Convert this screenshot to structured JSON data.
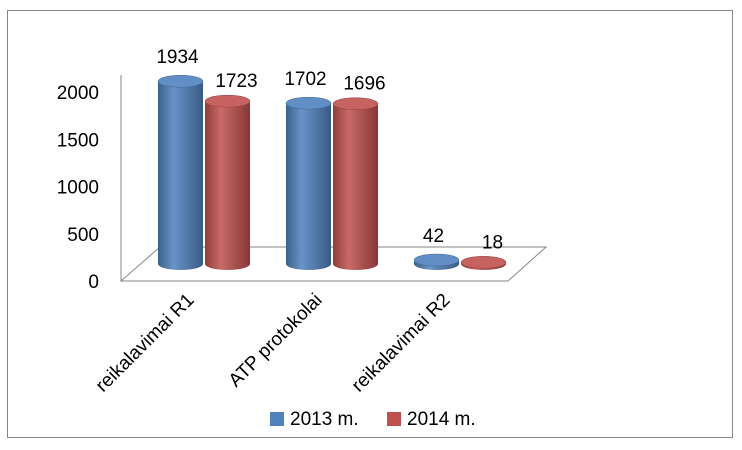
{
  "chart_data": {
    "type": "bar",
    "style": "3d-cylinder",
    "categories": [
      "reikalavimai R1",
      "ATP protokolai",
      "reikalavimai R2"
    ],
    "series": [
      {
        "name": "2013 m.",
        "values": [
          1934,
          1702,
          42
        ],
        "color": "#4F81BD"
      },
      {
        "name": "2014 m.",
        "values": [
          1723,
          1696,
          18
        ],
        "color": "#C0504D"
      }
    ],
    "ylim": [
      0,
      2000
    ],
    "yticks": [
      0,
      500,
      1000,
      1500,
      2000
    ],
    "grid": false,
    "legend": "bottom"
  }
}
